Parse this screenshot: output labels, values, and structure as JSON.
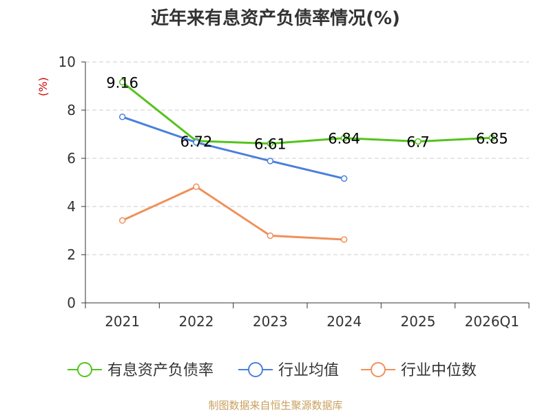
{
  "title": "近年来有息资产负债率情况(%)",
  "source": "制图数据来自恒生聚源数据库",
  "chart_data": {
    "type": "line",
    "categories": [
      "2021",
      "2022",
      "2023",
      "2024",
      "2025",
      "2026Q1"
    ],
    "ylabel": "(%)",
    "ylim": [
      0,
      10
    ],
    "yticks": [
      0,
      2,
      4,
      6,
      8,
      10
    ],
    "grid": true,
    "legend_position": "bottom",
    "series": [
      {
        "name": "有息资产负债率",
        "color": "#52c41a",
        "values": [
          9.16,
          6.72,
          6.61,
          6.84,
          6.7,
          6.85
        ],
        "labels": [
          "9.16",
          "6.72",
          "6.61",
          "6.84",
          "6.7",
          "6.85"
        ],
        "show_labels": true
      },
      {
        "name": "行业均值",
        "color": "#4a7fdc",
        "values": [
          7.72,
          6.66,
          5.89,
          5.16,
          null,
          null
        ],
        "show_labels": false
      },
      {
        "name": "行业中位数",
        "color": "#f0905a",
        "values": [
          3.42,
          4.82,
          2.79,
          2.63,
          null,
          null
        ],
        "show_labels": false
      }
    ]
  },
  "colors": {
    "axis": "#333333",
    "grid": "#cccccc",
    "ylabel": "#cc0000",
    "source": "#c8a060"
  }
}
